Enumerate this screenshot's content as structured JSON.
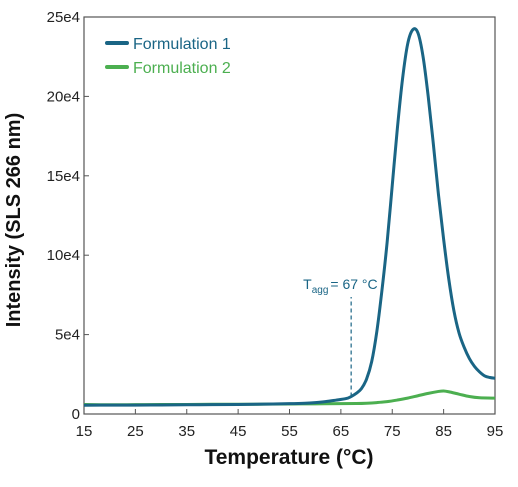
{
  "chart_data": {
    "type": "line",
    "xlabel": "Temperature (°C)",
    "ylabel": "Intensity (SLS 266 nm)",
    "xlim": [
      15,
      95
    ],
    "ylim": [
      0,
      250000
    ],
    "xticks": [
      "15",
      "25",
      "35",
      "45",
      "55",
      "65",
      "75",
      "85",
      "95"
    ],
    "yticks": [
      "0",
      "5e4",
      "10e4",
      "15e4",
      "20e4",
      "25e4"
    ],
    "grid": false,
    "legend_position": "top-left",
    "annotation": {
      "prefix": "T",
      "subscript": "agg",
      "text": "= 67 °C",
      "x": 67
    },
    "series": [
      {
        "name": "Formulation 1",
        "color": "#1a6585",
        "x": [
          15,
          20,
          25,
          30,
          35,
          40,
          45,
          50,
          55,
          58,
          60,
          62,
          64,
          66,
          67,
          68,
          69,
          70,
          71,
          72,
          73,
          74,
          75,
          76,
          77,
          78,
          79,
          80,
          81,
          82,
          83,
          84,
          85,
          86,
          87,
          88,
          89,
          90,
          91,
          92,
          93,
          94,
          95
        ],
        "y": [
          5500,
          5600,
          5600,
          5700,
          5800,
          5900,
          6000,
          6200,
          6500,
          6800,
          7200,
          7800,
          8700,
          9700,
          11000,
          13000,
          16000,
          22000,
          33000,
          52000,
          78000,
          108000,
          144000,
          180000,
          211000,
          233000,
          242000,
          240000,
          225000,
          200000,
          170000,
          138000,
          110000,
          85000,
          65000,
          51000,
          42000,
          35000,
          30000,
          26500,
          24000,
          23000,
          22500
        ]
      },
      {
        "name": "Formulation 2",
        "color": "#4caf50",
        "x": [
          15,
          20,
          25,
          30,
          35,
          40,
          45,
          50,
          55,
          60,
          65,
          68,
          70,
          72,
          74,
          76,
          78,
          80,
          82,
          84,
          85,
          86,
          88,
          90,
          92,
          95
        ],
        "y": [
          6000,
          5800,
          5900,
          6000,
          6000,
          6100,
          6100,
          6200,
          6300,
          6400,
          6500,
          6600,
          6800,
          7200,
          7800,
          8800,
          10000,
          11500,
          13000,
          14200,
          14500,
          14000,
          12500,
          11000,
          10200,
          10000
        ]
      }
    ]
  }
}
